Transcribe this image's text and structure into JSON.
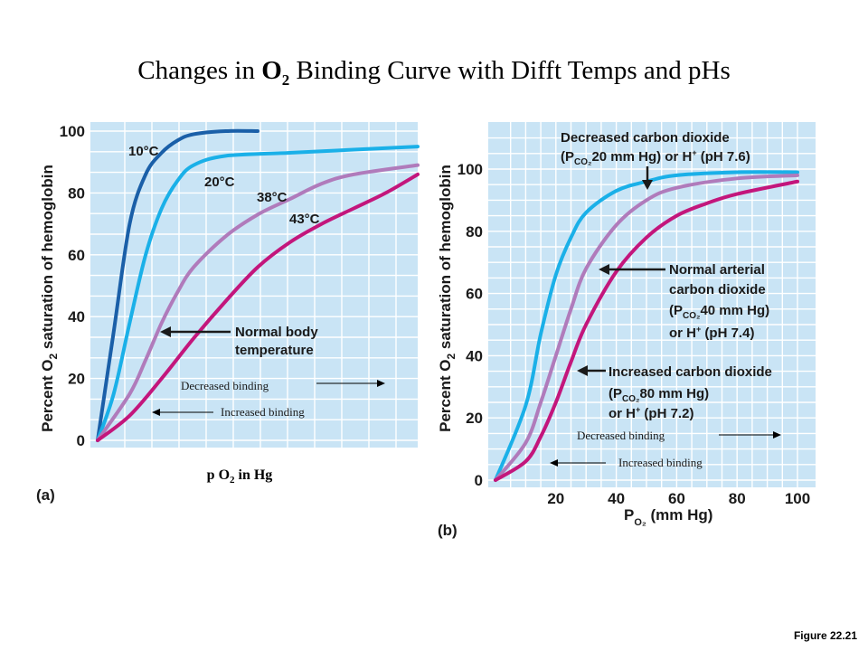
{
  "title": {
    "pre": "Changes in ",
    "o": "O",
    "sub": "2",
    "post": " Binding Curve with Difft Temps and pHs"
  },
  "figure_label": "Figure 22.21",
  "colors": {
    "bg": "#c9e4f5",
    "grid": "#ffffff",
    "c10": "#1a5fa8",
    "c20": "#1ab0e8",
    "c38": "#b07bbb",
    "c43": "#c3167c"
  },
  "chart_data": [
    {
      "type": "line",
      "panel": "(a)",
      "ylabel": {
        "pre": "Percent O",
        "sub": "2",
        "post": " saturation of hemoglobin"
      },
      "xlabel": {
        "pre": "p O",
        "sub": "2",
        "post": " in Hg"
      },
      "yticks": [
        "0",
        "20",
        "40",
        "60",
        "80",
        "100"
      ],
      "ylim": [
        0,
        100
      ],
      "xlim": [
        0,
        100
      ],
      "series": [
        {
          "name": "10°C",
          "x": [
            0,
            5,
            10,
            15,
            20,
            25,
            30,
            40,
            50
          ],
          "y": [
            0,
            35,
            70,
            86,
            93,
            97,
            99,
            100,
            100
          ]
        },
        {
          "name": "20°C",
          "x": [
            0,
            5,
            10,
            15,
            20,
            25,
            30,
            40,
            60,
            80,
            100
          ],
          "y": [
            0,
            15,
            38,
            60,
            75,
            84,
            89,
            92,
            93,
            94,
            95
          ]
        },
        {
          "name": "38°C",
          "x": [
            0,
            10,
            15,
            20,
            25,
            30,
            40,
            50,
            60,
            70,
            80,
            100
          ],
          "y": [
            0,
            15,
            26,
            38,
            48,
            56,
            66,
            73,
            78,
            83,
            86,
            89
          ]
        },
        {
          "name": "43°C",
          "x": [
            0,
            10,
            20,
            30,
            40,
            50,
            60,
            70,
            80,
            90,
            100
          ],
          "y": [
            0,
            8,
            20,
            33,
            45,
            56,
            64,
            70,
            75,
            80,
            86
          ]
        }
      ],
      "annotations": [
        "Normal body",
        "temperature",
        "Decreased binding",
        "Increased binding"
      ]
    },
    {
      "type": "line",
      "panel": "(b)",
      "ylabel": {
        "pre": "Percent O",
        "sub": "2",
        "post": " saturation of hemoglobin"
      },
      "xlabel": {
        "p": "P",
        "sub": "O₂",
        "post": " (mm Hg)"
      },
      "yticks": [
        "0",
        "20",
        "40",
        "60",
        "80",
        "100"
      ],
      "xticks": [
        "20",
        "40",
        "60",
        "80",
        "100"
      ],
      "ylim": [
        0,
        110
      ],
      "xlim": [
        0,
        100
      ],
      "series": [
        {
          "name": "Decreased carbon dioxide (P CO₂ 20 mm Hg) or H⁺ (pH 7.6)",
          "x": [
            0,
            10,
            15,
            20,
            25,
            30,
            40,
            50,
            60,
            80,
            100
          ],
          "y": [
            0,
            24,
            47,
            66,
            78,
            86,
            93,
            96,
            98,
            99,
            99
          ]
        },
        {
          "name": "Normal arterial carbon dioxide (P CO₂ 40 mm Hg) or H⁺ (pH 7.4)",
          "x": [
            0,
            10,
            15,
            20,
            25,
            30,
            40,
            50,
            60,
            80,
            100
          ],
          "y": [
            0,
            12,
            25,
            40,
            55,
            68,
            82,
            90,
            94,
            97,
            98
          ]
        },
        {
          "name": "Increased carbon dioxide (P CO₂ 80 mm Hg) or H⁺ (pH 7.2)",
          "x": [
            0,
            10,
            15,
            20,
            25,
            30,
            40,
            50,
            60,
            70,
            80,
            100
          ],
          "y": [
            0,
            6,
            14,
            25,
            38,
            50,
            67,
            78,
            85,
            89,
            92,
            96
          ]
        }
      ],
      "labels": {
        "dec1": "Decreased carbon dioxide",
        "dec2a": "(P",
        "dec2sub": "CO₂",
        "dec2b": "20 mm Hg) or H",
        "dec2sup": "+",
        "dec2c": " (pH 7.6)",
        "norm1": "Normal arterial",
        "norm2": "carbon dioxide",
        "norm3a": "(P",
        "norm3sub": "CO₂",
        "norm3b": "40 mm Hg)",
        "norm4a": "or H",
        "norm4sup": "+",
        "norm4b": " (pH 7.4)",
        "inc1": "Increased carbon dioxide",
        "inc2a": "(P",
        "inc2sub": "CO₂",
        "inc2b": "80 mm Hg)",
        "inc3a": "or H",
        "inc3sup": "+",
        "inc3b": " (pH 7.2)",
        "decb": "Decreased binding",
        "incb": "Increased binding"
      }
    }
  ]
}
